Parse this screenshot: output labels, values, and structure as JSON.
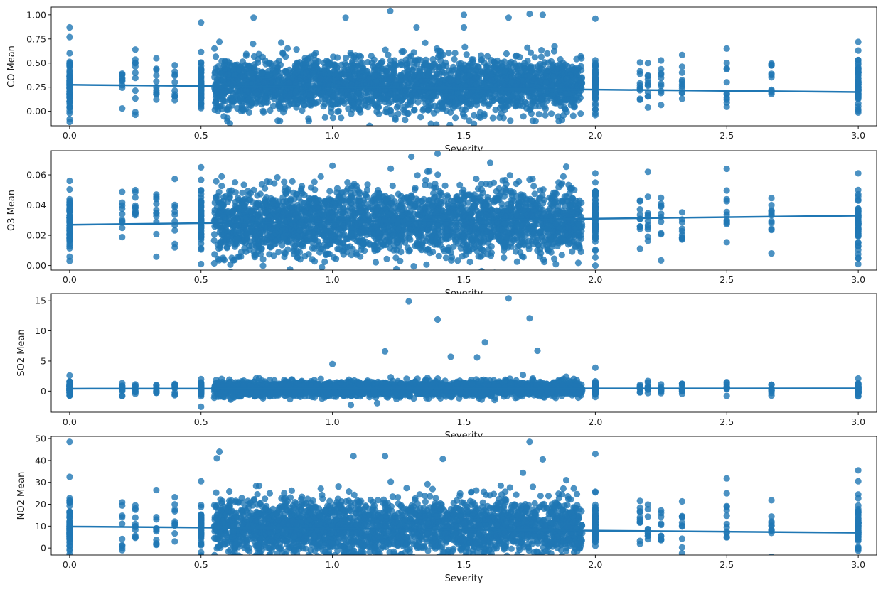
{
  "colors": {
    "points": "#1f77b4",
    "fit": "#1f77b4",
    "axes": "#000000"
  },
  "chart_data": [
    {
      "type": "scatter",
      "title": "",
      "xlabel": "Severity",
      "ylabel": "CO Mean",
      "xlim": [
        -0.07,
        3.07
      ],
      "ylim": [
        -0.15,
        1.08
      ],
      "xticks": [
        0.0,
        0.5,
        1.0,
        1.5,
        2.0,
        2.5,
        3.0
      ],
      "xtick_labels": [
        "0.0",
        "0.5",
        "1.0",
        "1.5",
        "2.0",
        "2.5",
        "3.0"
      ],
      "yticks": [
        0.0,
        0.25,
        0.5,
        0.75,
        1.0
      ],
      "ytick_labels": [
        "0.00",
        "0.25",
        "0.50",
        "0.75",
        "1.00"
      ],
      "regression_line": {
        "x": [
          0.0,
          3.0
        ],
        "y": [
          0.275,
          0.2
        ]
      },
      "sample_points": [
        {
          "x": 0.0,
          "y": 0.87
        },
        {
          "x": 0.0,
          "y": 0.77
        },
        {
          "x": 0.0,
          "y": 0.5
        },
        {
          "x": 0.0,
          "y": 0.3
        },
        {
          "x": 0.0,
          "y": 0.1
        },
        {
          "x": 0.0,
          "y": -0.02
        },
        {
          "x": 0.25,
          "y": 0.64
        },
        {
          "x": 0.33,
          "y": 0.55
        },
        {
          "x": 0.5,
          "y": 0.92
        },
        {
          "x": 0.5,
          "y": 0.5
        },
        {
          "x": 0.57,
          "y": 0.72
        },
        {
          "x": 0.6,
          "y": -0.1
        },
        {
          "x": 0.7,
          "y": 0.97
        },
        {
          "x": 0.8,
          "y": -0.1
        },
        {
          "x": 0.91,
          "y": -0.1
        },
        {
          "x": 1.05,
          "y": 0.97
        },
        {
          "x": 1.22,
          "y": 1.04
        },
        {
          "x": 1.32,
          "y": 0.87
        },
        {
          "x": 1.5,
          "y": 1.0
        },
        {
          "x": 1.5,
          "y": 0.87
        },
        {
          "x": 1.67,
          "y": 0.97
        },
        {
          "x": 1.75,
          "y": 1.01
        },
        {
          "x": 1.8,
          "y": 1.0
        },
        {
          "x": 2.0,
          "y": 0.96
        },
        {
          "x": 2.0,
          "y": 0.5
        },
        {
          "x": 2.0,
          "y": -0.02
        },
        {
          "x": 2.2,
          "y": 0.5
        },
        {
          "x": 2.33,
          "y": 0.4
        },
        {
          "x": 2.5,
          "y": 0.65
        },
        {
          "x": 2.67,
          "y": 0.18
        },
        {
          "x": 3.0,
          "y": 0.63
        },
        {
          "x": 3.0,
          "y": 0.05
        }
      ],
      "cloud_summary": {
        "x_range": [
          0.55,
          1.95
        ],
        "y_center": 0.27,
        "y_spread": 0.14
      }
    },
    {
      "type": "scatter",
      "title": "",
      "xlabel": "Severity",
      "ylabel": "O3 Mean",
      "xlim": [
        -0.07,
        3.07
      ],
      "ylim": [
        -0.003,
        0.076
      ],
      "xticks": [
        0.0,
        0.5,
        1.0,
        1.5,
        2.0,
        2.5,
        3.0
      ],
      "xtick_labels": [
        "0.0",
        "0.5",
        "1.0",
        "1.5",
        "2.0",
        "2.5",
        "3.0"
      ],
      "yticks": [
        0.0,
        0.02,
        0.04,
        0.06
      ],
      "ytick_labels": [
        "0.00",
        "0.02",
        "0.04",
        "0.06"
      ],
      "regression_line": {
        "x": [
          0.0,
          3.0
        ],
        "y": [
          0.027,
          0.033
        ]
      },
      "sample_points": [
        {
          "x": 0.0,
          "y": 0.056
        },
        {
          "x": 0.0,
          "y": 0.04
        },
        {
          "x": 0.0,
          "y": 0.02
        },
        {
          "x": 0.0,
          "y": 0.003
        },
        {
          "x": 0.25,
          "y": 0.045
        },
        {
          "x": 0.33,
          "y": 0.047
        },
        {
          "x": 0.5,
          "y": 0.065
        },
        {
          "x": 0.5,
          "y": 0.001
        },
        {
          "x": 1.0,
          "y": 0.066
        },
        {
          "x": 1.3,
          "y": 0.072
        },
        {
          "x": 1.4,
          "y": 0.074
        },
        {
          "x": 1.6,
          "y": 0.068
        },
        {
          "x": 2.0,
          "y": 0.061
        },
        {
          "x": 2.0,
          "y": 0.0
        },
        {
          "x": 2.2,
          "y": 0.062
        },
        {
          "x": 2.5,
          "y": 0.064
        },
        {
          "x": 2.67,
          "y": 0.036
        },
        {
          "x": 2.67,
          "y": 0.008
        },
        {
          "x": 3.0,
          "y": 0.061
        },
        {
          "x": 3.0,
          "y": 0.001
        }
      ],
      "cloud_summary": {
        "x_range": [
          0.55,
          1.95
        ],
        "y_center": 0.029,
        "y_spread": 0.011
      }
    },
    {
      "type": "scatter",
      "title": "",
      "xlabel": "Severity",
      "ylabel": "SO2 Mean",
      "xlim": [
        -0.07,
        3.07
      ],
      "ylim": [
        -3.5,
        16.2
      ],
      "xticks": [
        0.0,
        0.5,
        1.0,
        1.5,
        2.0,
        2.5,
        3.0
      ],
      "xtick_labels": [
        "0.0",
        "0.5",
        "1.0",
        "1.5",
        "2.0",
        "2.5",
        "3.0"
      ],
      "yticks": [
        0,
        5,
        10,
        15
      ],
      "ytick_labels": [
        "0",
        "5",
        "10",
        "15"
      ],
      "regression_line": {
        "x": [
          0.0,
          3.0
        ],
        "y": [
          0.4,
          0.45
        ]
      },
      "sample_points": [
        {
          "x": 0.0,
          "y": 2.6
        },
        {
          "x": 0.0,
          "y": 0.0
        },
        {
          "x": 0.5,
          "y": -2.6
        },
        {
          "x": 0.5,
          "y": 2.0
        },
        {
          "x": 1.0,
          "y": 4.5
        },
        {
          "x": 1.07,
          "y": -2.3
        },
        {
          "x": 1.2,
          "y": 6.6
        },
        {
          "x": 1.17,
          "y": -2.0
        },
        {
          "x": 1.29,
          "y": 14.9
        },
        {
          "x": 1.4,
          "y": 11.9
        },
        {
          "x": 1.58,
          "y": 8.1
        },
        {
          "x": 1.67,
          "y": 15.4
        },
        {
          "x": 1.75,
          "y": 12.1
        },
        {
          "x": 1.78,
          "y": 6.7
        },
        {
          "x": 1.55,
          "y": 5.6
        },
        {
          "x": 1.45,
          "y": 5.7
        },
        {
          "x": 2.0,
          "y": 3.9
        },
        {
          "x": 2.5,
          "y": 1.5
        },
        {
          "x": 3.0,
          "y": 2.1
        },
        {
          "x": 3.0,
          "y": -0.2
        }
      ],
      "cloud_summary": {
        "x_range": [
          0.55,
          1.95
        ],
        "y_center": 0.4,
        "y_spread": 0.6
      }
    },
    {
      "type": "scatter",
      "title": "",
      "xlabel": "Severity",
      "ylabel": "NO2 Mean",
      "xlim": [
        -0.07,
        3.07
      ],
      "ylim": [
        -3.2,
        51.0
      ],
      "xticks": [
        0.0,
        0.5,
        1.0,
        1.5,
        2.0,
        2.5,
        3.0
      ],
      "xtick_labels": [
        "0.0",
        "0.5",
        "1.0",
        "1.5",
        "2.0",
        "2.5",
        "3.0"
      ],
      "yticks": [
        0,
        10,
        20,
        30,
        40,
        50
      ],
      "ytick_labels": [
        "0",
        "10",
        "20",
        "30",
        "40",
        "50"
      ],
      "regression_line": {
        "x": [
          0.0,
          3.0
        ],
        "y": [
          9.8,
          7.0
        ]
      },
      "sample_points": [
        {
          "x": 0.0,
          "y": 48.5
        },
        {
          "x": 0.0,
          "y": 32.5
        },
        {
          "x": 0.0,
          "y": 1.0
        },
        {
          "x": 0.25,
          "y": 19.5
        },
        {
          "x": 0.33,
          "y": 26.5
        },
        {
          "x": 0.5,
          "y": 30.5
        },
        {
          "x": 0.57,
          "y": 44.0
        },
        {
          "x": 0.56,
          "y": 41.0
        },
        {
          "x": 1.08,
          "y": 42.0
        },
        {
          "x": 1.2,
          "y": 42.0
        },
        {
          "x": 1.42,
          "y": 40.7
        },
        {
          "x": 1.75,
          "y": 48.5
        },
        {
          "x": 1.8,
          "y": 40.5
        },
        {
          "x": 2.0,
          "y": 43.0
        },
        {
          "x": 2.17,
          "y": 21.5
        },
        {
          "x": 2.5,
          "y": 31.8
        },
        {
          "x": 2.5,
          "y": 25.0
        },
        {
          "x": 2.67,
          "y": 8.5
        },
        {
          "x": 3.0,
          "y": 35.5
        },
        {
          "x": 3.0,
          "y": 30.5
        }
      ],
      "cloud_summary": {
        "x_range": [
          0.55,
          1.95
        ],
        "y_center": 9.5,
        "y_spread": 6.5
      }
    }
  ]
}
